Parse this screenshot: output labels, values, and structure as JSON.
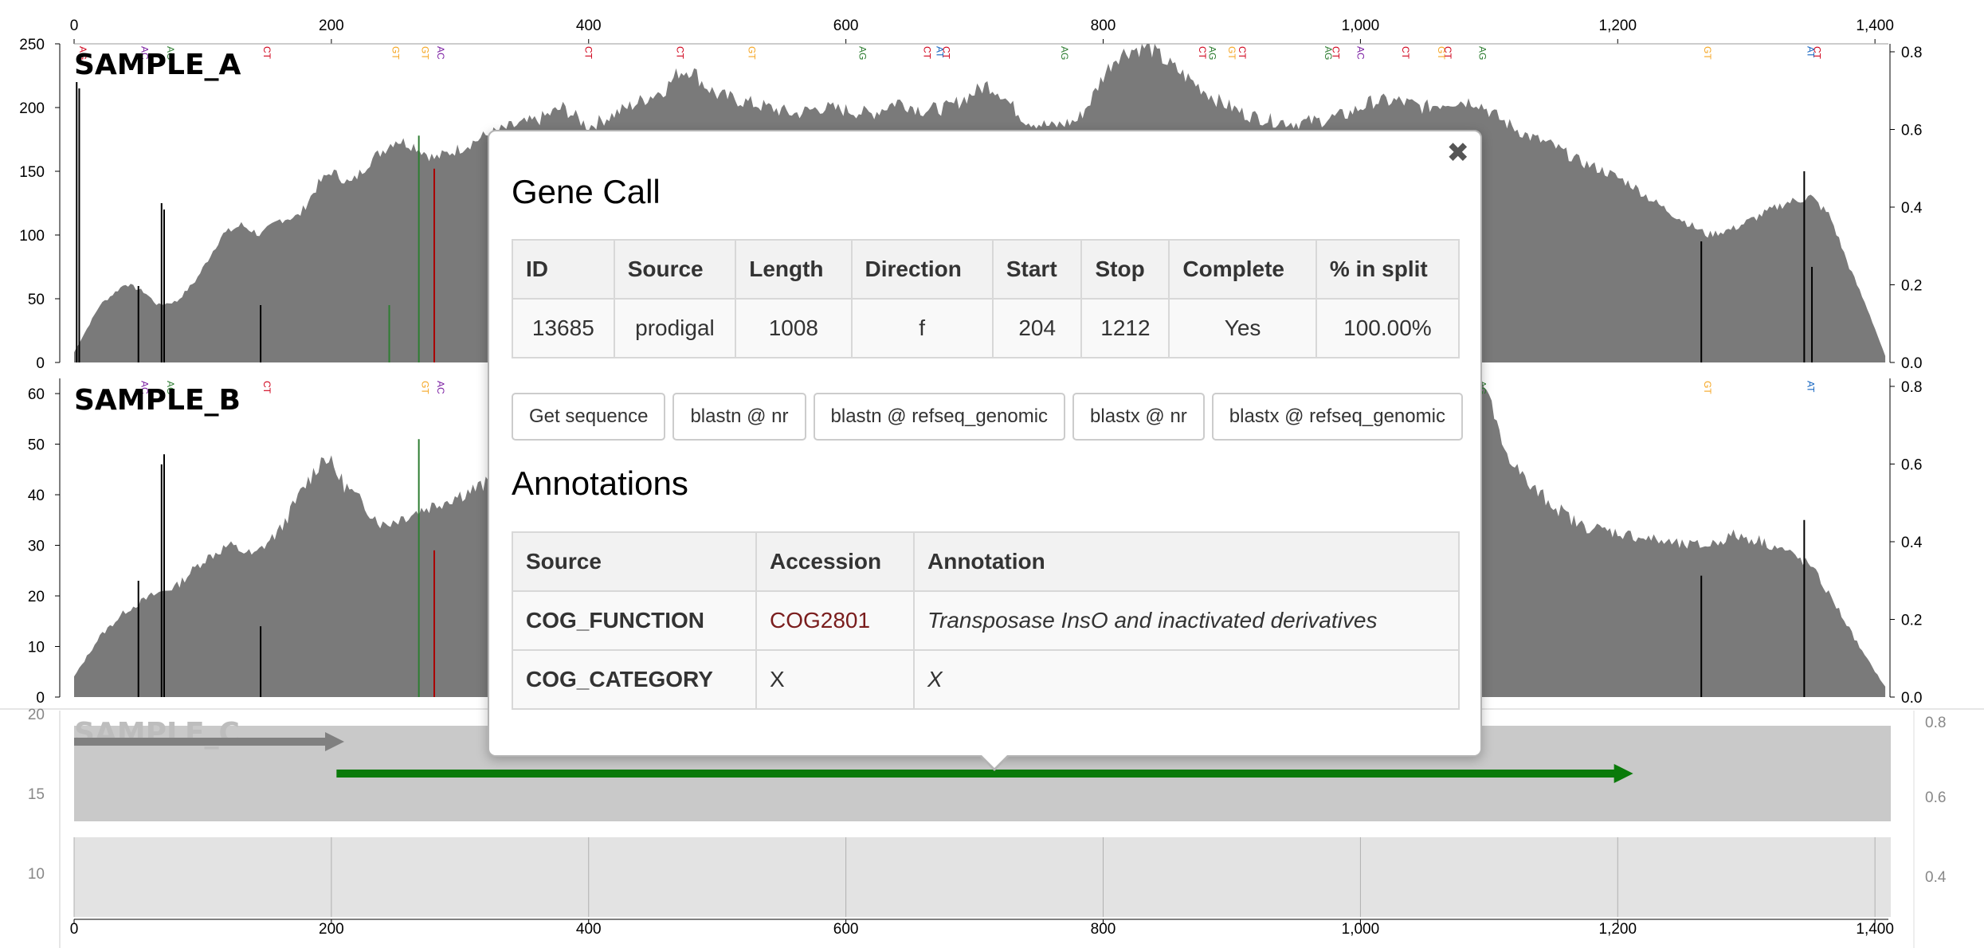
{
  "samples": [
    {
      "name": "SAMPLE_A",
      "y_ticks": [
        0,
        50,
        100,
        150,
        200,
        250
      ],
      "y_max": 250,
      "right_ticks": [
        "0.0",
        "0.2",
        "0.4",
        "0.6",
        "0.8"
      ]
    },
    {
      "name": "SAMPLE_B",
      "y_ticks": [
        0,
        10,
        20,
        30,
        40,
        50,
        60
      ],
      "y_max": 63,
      "right_ticks": [
        "0.0",
        "0.2",
        "0.4",
        "0.6",
        "0.8"
      ]
    },
    {
      "name": "SAMPLE_C",
      "y_ticks": [
        10,
        15,
        20
      ],
      "right_ticks": [
        "0.4",
        "0.6",
        "0.8"
      ]
    }
  ],
  "x_axis": {
    "ticks": [
      "0",
      "200",
      "400",
      "600",
      "800",
      "1,000",
      "1,200",
      "1,400"
    ],
    "min": 0,
    "max": 1410
  },
  "gene_arrows": [
    {
      "start": 0,
      "stop": 210,
      "color": "#808080"
    },
    {
      "start": 204,
      "stop": 1212,
      "color": "#0a7a0a"
    }
  ],
  "snv_markers": [
    {
      "pos": 2,
      "label": "AG",
      "color": "#d0021b"
    },
    {
      "pos": 50,
      "label": "AC",
      "color": "#7b1fa2"
    },
    {
      "pos": 70,
      "label": "AG",
      "color": "#2e7d32"
    },
    {
      "pos": 145,
      "label": "CT",
      "color": "#d0021b"
    },
    {
      "pos": 245,
      "label": "GT",
      "color": "#f5a623"
    },
    {
      "pos": 268,
      "label": "GT",
      "color": "#f5a623"
    },
    {
      "pos": 280,
      "label": "AC",
      "color": "#7b1fa2"
    },
    {
      "pos": 395,
      "label": "CT",
      "color": "#d0021b"
    },
    {
      "pos": 466,
      "label": "CT",
      "color": "#d0021b"
    },
    {
      "pos": 522,
      "label": "GT",
      "color": "#f5a623"
    },
    {
      "pos": 608,
      "label": "AG",
      "color": "#2e7d32"
    },
    {
      "pos": 658,
      "label": "CT",
      "color": "#d0021b"
    },
    {
      "pos": 668,
      "label": "AT",
      "color": "#1565c0"
    },
    {
      "pos": 673,
      "label": "CT",
      "color": "#d0021b"
    },
    {
      "pos": 765,
      "label": "AG",
      "color": "#2e7d32"
    },
    {
      "pos": 872,
      "label": "CT",
      "color": "#d0021b"
    },
    {
      "pos": 880,
      "label": "AG",
      "color": "#2e7d32"
    },
    {
      "pos": 895,
      "label": "GT",
      "color": "#f5a623"
    },
    {
      "pos": 903,
      "label": "CT",
      "color": "#d0021b"
    },
    {
      "pos": 970,
      "label": "AG",
      "color": "#2e7d32"
    },
    {
      "pos": 976,
      "label": "CT",
      "color": "#d0021b"
    },
    {
      "pos": 995,
      "label": "AC",
      "color": "#7b1fa2"
    },
    {
      "pos": 1030,
      "label": "CT",
      "color": "#d0021b"
    },
    {
      "pos": 1058,
      "label": "GT",
      "color": "#f5a623"
    },
    {
      "pos": 1063,
      "label": "CT",
      "color": "#d0021b"
    },
    {
      "pos": 1090,
      "label": "AG",
      "color": "#2e7d32"
    },
    {
      "pos": 1265,
      "label": "GT",
      "color": "#f5a623"
    },
    {
      "pos": 1345,
      "label": "AT",
      "color": "#1565c0"
    },
    {
      "pos": 1350,
      "label": "CT",
      "color": "#d0021b"
    }
  ],
  "popover": {
    "title": "Gene Call",
    "close_icon": "close-icon",
    "gene_headers": [
      "ID",
      "Source",
      "Length",
      "Direction",
      "Start",
      "Stop",
      "Complete",
      "% in split"
    ],
    "gene_values": [
      "13685",
      "prodigal",
      "1008",
      "f",
      "204",
      "1212",
      "Yes",
      "100.00%"
    ],
    "buttons": [
      "Get sequence",
      "blastn @ nr",
      "blastn @ refseq_genomic",
      "blastx @ nr",
      "blastx @ refseq_genomic"
    ],
    "annotations_title": "Annotations",
    "annotation_headers": [
      "Source",
      "Accession",
      "Annotation"
    ],
    "annotations": [
      {
        "source": "COG_FUNCTION",
        "accession": "COG2801",
        "annotation": "Transposase InsO and inactivated derivatives"
      },
      {
        "source": "COG_CATEGORY",
        "accession": "X",
        "annotation": "X"
      }
    ],
    "accession_link_color": "#7a1d1d"
  }
}
